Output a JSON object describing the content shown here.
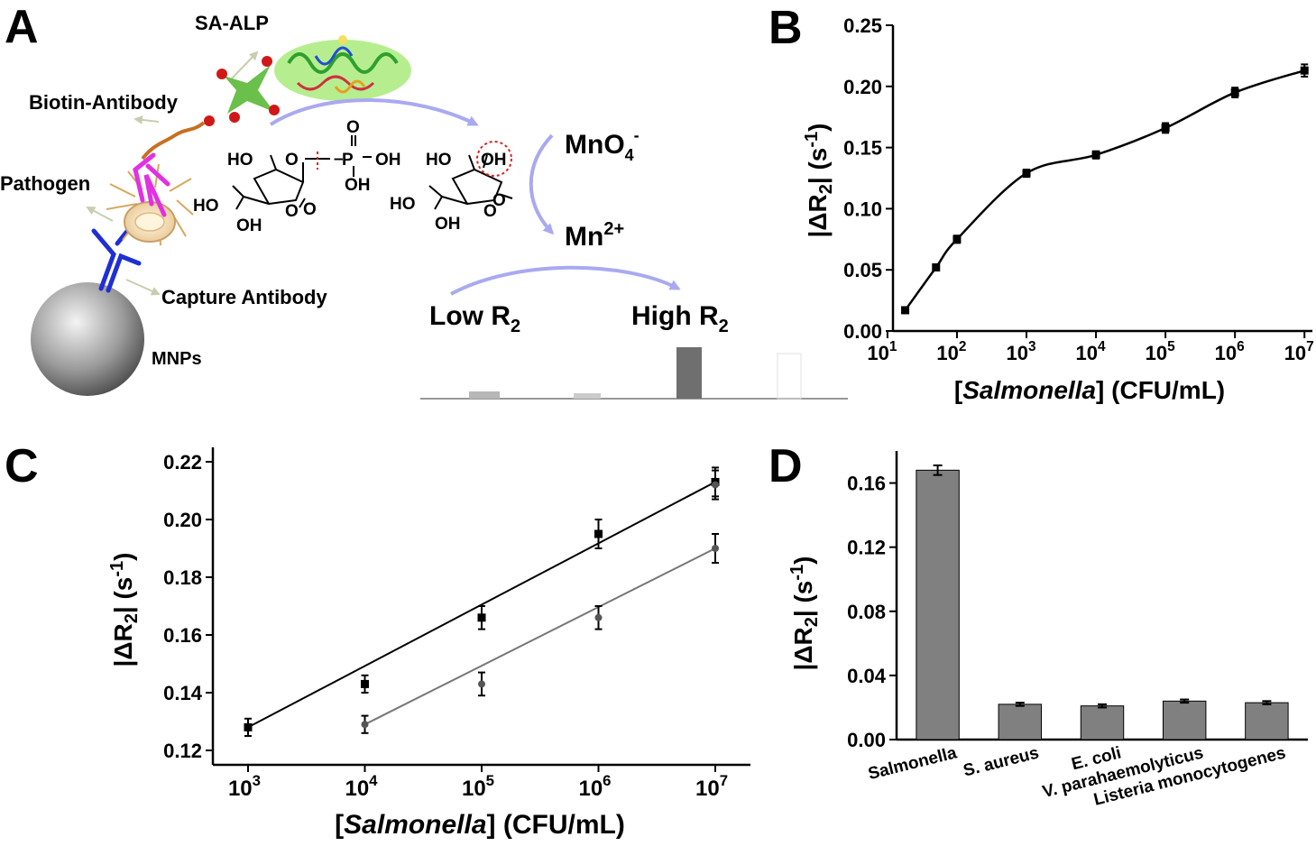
{
  "panels": {
    "a": "A",
    "b": "B",
    "c": "C",
    "d": "D"
  },
  "schematic": {
    "sa_alp": "SA-ALP",
    "biotin_antibody": "Biotin-Antibody",
    "pathogen": "Pathogen",
    "capture_antibody": "Capture Antibody",
    "mnps": "MNPs",
    "mno4": "MnO",
    "mno4_sub": "4",
    "mno4_sup": "-",
    "mn2": "Mn",
    "mn2_sup": "2+",
    "low_r2": "Low R",
    "high_r2": "High R",
    "r_sub": "2"
  },
  "chart_data": [
    {
      "type": "line",
      "panel": "B",
      "xscale": "log",
      "x": [
        18,
        50,
        100,
        1000,
        10000,
        100000,
        1000000,
        10000000
      ],
      "y": [
        0.017,
        0.052,
        0.075,
        0.129,
        0.144,
        0.166,
        0.195,
        0.213
      ],
      "err": [
        0.002,
        0.002,
        0.003,
        0.003,
        0.003,
        0.004,
        0.004,
        0.005
      ],
      "ylim": [
        0,
        0.25
      ],
      "yticks": [
        "0.00",
        "0.05",
        "0.10",
        "0.15",
        "0.20",
        "0.25"
      ],
      "xticks": [
        {
          "b": "10",
          "e": "1"
        },
        {
          "b": "10",
          "e": "2"
        },
        {
          "b": "10",
          "e": "3"
        },
        {
          "b": "10",
          "e": "4"
        },
        {
          "b": "10",
          "e": "5"
        },
        {
          "b": "10",
          "e": "6"
        },
        {
          "b": "10",
          "e": "7"
        }
      ],
      "ylabel": "|ΔR2| (s-1)",
      "xlabel": "[Salmonella] (CFU/mL)"
    },
    {
      "type": "scatter",
      "panel": "C",
      "xscale": "log",
      "series": [
        {
          "x": [
            1000,
            10000,
            100000,
            1000000,
            10000000
          ],
          "y": [
            0.128,
            0.143,
            0.166,
            0.195,
            0.213
          ],
          "err": [
            0.003,
            0.003,
            0.004,
            0.005,
            0.005
          ],
          "fit": true
        },
        {
          "x": [
            10000,
            100000,
            1000000,
            10000000
          ],
          "y": [
            0.129,
            0.143,
            0.166,
            0.19
          ],
          "err": [
            0.003,
            0.004,
            0.004,
            0.005
          ],
          "fit": true
        },
        {
          "x": [
            10000000
          ],
          "y": [
            0.212
          ],
          "err": [
            0.005
          ],
          "fit": false
        }
      ],
      "ylim": [
        0.115,
        0.225
      ],
      "yticks": [
        "0.12",
        "0.14",
        "0.16",
        "0.18",
        "0.20",
        "0.22"
      ],
      "xticks": [
        {
          "b": "10",
          "e": "3"
        },
        {
          "b": "10",
          "e": "4"
        },
        {
          "b": "10",
          "e": "5"
        },
        {
          "b": "10",
          "e": "6"
        },
        {
          "b": "10",
          "e": "7"
        }
      ],
      "ylabel": "|ΔR2| (s-1)",
      "xlabel": "[Salmonella] (CFU/mL)"
    },
    {
      "type": "bar",
      "panel": "D",
      "categories": [
        "Salmonella",
        "S. aureus",
        "E. coli",
        "V. parahaemolyticus",
        "Listeria monocytogenes"
      ],
      "values": [
        0.168,
        0.022,
        0.021,
        0.024,
        0.023
      ],
      "err": [
        0.003,
        0.001,
        0.001,
        0.001,
        0.001
      ],
      "ylim": [
        0,
        0.18
      ],
      "yticks": [
        "0.00",
        "0.04",
        "0.08",
        "0.12",
        "0.16"
      ],
      "ylabel": "|ΔR2| (s-1)"
    }
  ]
}
